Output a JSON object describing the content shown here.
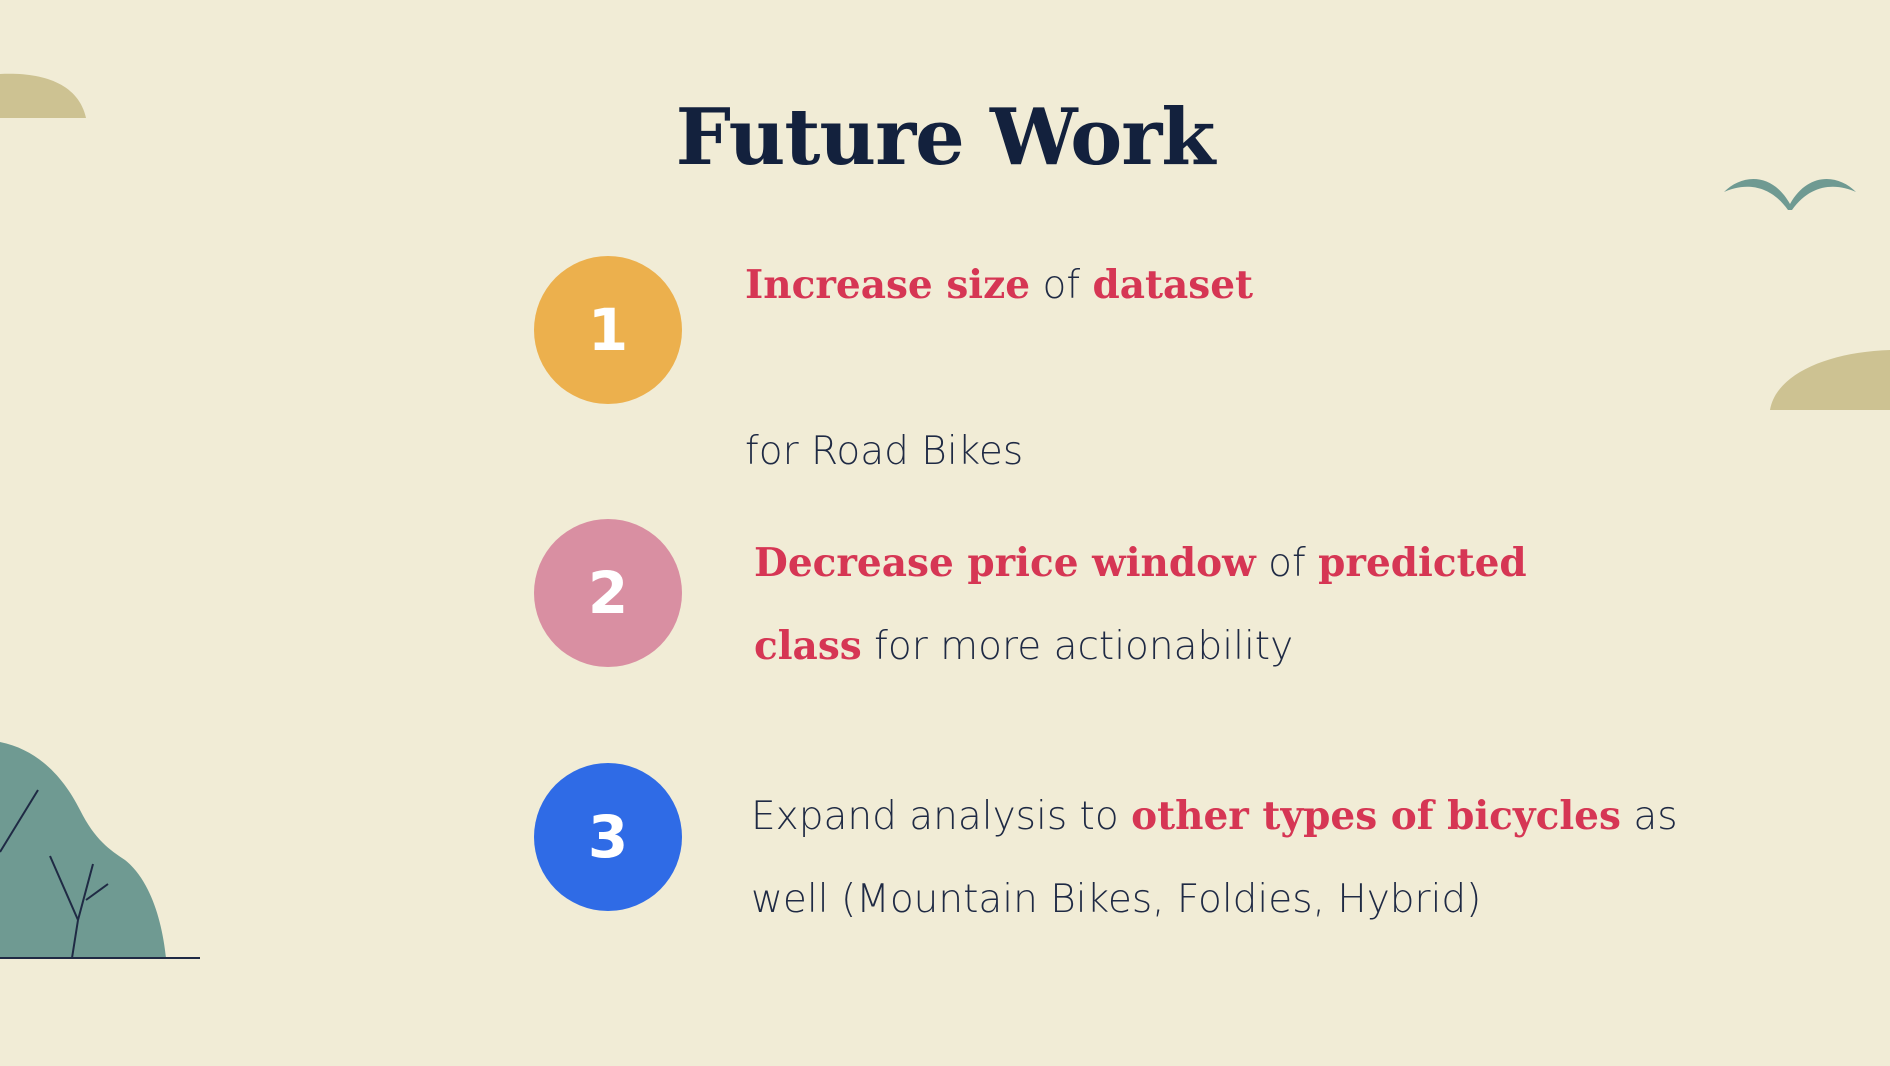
{
  "slide": {
    "title": "Future Work",
    "items": [
      {
        "number": "1",
        "color": "#ecb04d",
        "segments": [
          {
            "text": "Increase size",
            "highlight": true
          },
          {
            "text": " of ",
            "highlight": false
          },
          {
            "text": "dataset",
            "highlight": true
          },
          {
            "text": "\nfor Road Bikes",
            "highlight": false
          }
        ]
      },
      {
        "number": "2",
        "color": "#d98fa2",
        "segments": [
          {
            "text": "Decrease price window",
            "highlight": true
          },
          {
            "text": " of ",
            "highlight": false
          },
          {
            "text": "predicted\nclass",
            "highlight": true
          },
          {
            "text": " for more actionability",
            "highlight": false
          }
        ]
      },
      {
        "number": "3",
        "color": "#2f6be6",
        "segments": [
          {
            "text": "Expand analysis to ",
            "highlight": false
          },
          {
            "text": "other types of bicycles",
            "highlight": true
          },
          {
            "text": " as\nwell (Mountain Bikes, Foldies, Hybrid)",
            "highlight": false
          }
        ]
      }
    ]
  },
  "theme": {
    "background": "#f1ecd6",
    "title_color": "#13213d",
    "highlight_color": "#d63654",
    "body_text_color": "#1f2a44",
    "hill_color": "#cdc292",
    "tree_color": "#6f9a92",
    "bird_color": "#6f9a92"
  },
  "decorations": {
    "icons": [
      "hill-top-left",
      "bird-icon",
      "hill-right",
      "tree-bush-bottom-left"
    ]
  }
}
